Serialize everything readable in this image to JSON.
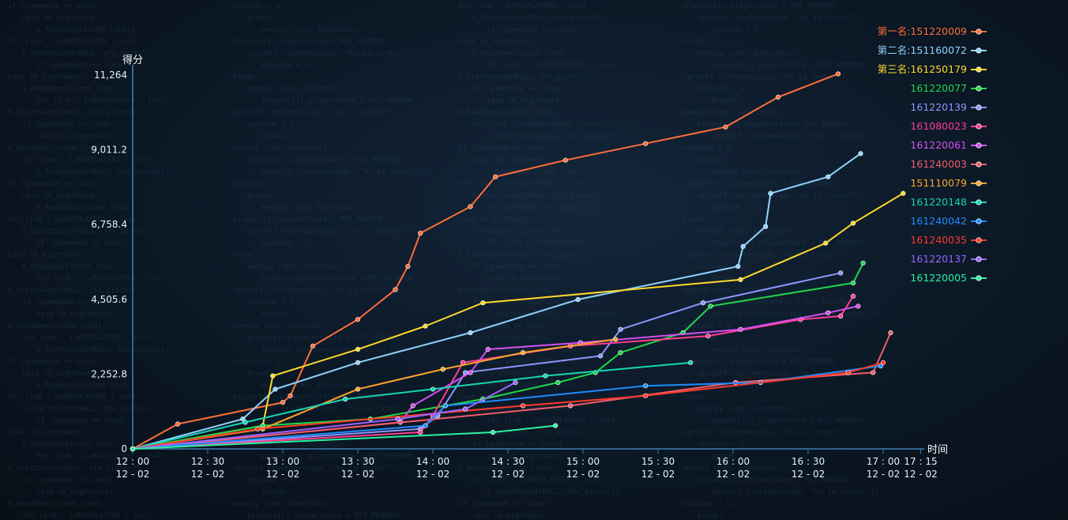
{
  "chart_data": {
    "type": "line",
    "ylabel": "得分",
    "xlabel": "时间",
    "ylim": [
      0,
      11264
    ],
    "yticks": [
      "0",
      "2,252.8",
      "4,505.6",
      "6,758.4",
      "9,011.2",
      "11,264"
    ],
    "yticks_values": [
      0,
      2252.8,
      4505.6,
      6758.4,
      9011.2,
      11264
    ],
    "xlim": [
      "12:00",
      "17:15"
    ],
    "xticks": [
      {
        "t": "12:00",
        "time": "12 : 00",
        "date": "12 - 02"
      },
      {
        "t": "12:30",
        "time": "12 : 30",
        "date": "12 - 02"
      },
      {
        "t": "13:00",
        "time": "13 : 00",
        "date": "12 - 02"
      },
      {
        "t": "13:30",
        "time": "13 : 30",
        "date": "12 - 02"
      },
      {
        "t": "14:00",
        "time": "14 : 00",
        "date": "12 - 02"
      },
      {
        "t": "14:30",
        "time": "14 : 30",
        "date": "12 - 02"
      },
      {
        "t": "15:00",
        "time": "15 : 00",
        "date": "12 - 02"
      },
      {
        "t": "15:30",
        "time": "15 : 30",
        "date": "12 - 02"
      },
      {
        "t": "16:00",
        "time": "16 : 00",
        "date": "12 - 02"
      },
      {
        "t": "16:30",
        "time": "16 : 30",
        "date": "12 - 02"
      },
      {
        "t": "17:00",
        "time": "17 : 00",
        "date": "12 - 02"
      },
      {
        "t": "17:15",
        "time": "17 : 15",
        "date": "12 - 02"
      }
    ],
    "grid": false,
    "legend_position": "top-right",
    "series": [
      {
        "name": "第一名:151220009",
        "color": "#ff6e3a",
        "points": [
          [
            "12:00",
            0
          ],
          [
            "12:18",
            750
          ],
          [
            "13:00",
            1400
          ],
          [
            "13:03",
            1600
          ],
          [
            "13:12",
            3100
          ],
          [
            "13:30",
            3900
          ],
          [
            "13:45",
            4800
          ],
          [
            "13:50",
            5500
          ],
          [
            "13:55",
            6500
          ],
          [
            "14:15",
            7300
          ],
          [
            "14:25",
            8200
          ],
          [
            "14:53",
            8700
          ],
          [
            "15:25",
            9200
          ],
          [
            "15:57",
            9700
          ],
          [
            "16:18",
            10600
          ],
          [
            "16:42",
            11300
          ]
        ]
      },
      {
        "name": "第二名:151160072",
        "color": "#8fd3ff",
        "points": [
          [
            "12:00",
            0
          ],
          [
            "12:44",
            900
          ],
          [
            "12:57",
            1800
          ],
          [
            "13:30",
            2600
          ],
          [
            "14:15",
            3500
          ],
          [
            "14:58",
            4500
          ],
          [
            "16:02",
            5500
          ],
          [
            "16:04",
            6100
          ],
          [
            "16:13",
            6700
          ],
          [
            "16:15",
            7700
          ],
          [
            "16:38",
            8200
          ],
          [
            "16:51",
            8900
          ]
        ]
      },
      {
        "name": "第三名:161250179",
        "color": "#ffd82a",
        "points": [
          [
            "12:00",
            0
          ],
          [
            "12:52",
            700
          ],
          [
            "12:56",
            2200
          ],
          [
            "13:30",
            3000
          ],
          [
            "13:57",
            3700
          ],
          [
            "14:20",
            4400
          ],
          [
            "16:03",
            5100
          ],
          [
            "16:37",
            6200
          ],
          [
            "16:48",
            6800
          ],
          [
            "17:08",
            7700
          ]
        ]
      },
      {
        "name": "161220077",
        "color": "#20d84a",
        "points": [
          [
            "12:00",
            0
          ],
          [
            "12:52",
            700
          ],
          [
            "13:35",
            900
          ],
          [
            "14:20",
            1500
          ],
          [
            "14:50",
            2000
          ],
          [
            "15:05",
            2300
          ],
          [
            "15:15",
            2900
          ],
          [
            "15:40",
            3500
          ],
          [
            "15:51",
            4300
          ],
          [
            "16:48",
            5000
          ],
          [
            "16:52",
            5600
          ]
        ]
      },
      {
        "name": "161220139",
        "color": "#8c96ff",
        "points": [
          [
            "12:00",
            0
          ],
          [
            "13:55",
            600
          ],
          [
            "14:02",
            1000
          ],
          [
            "14:13",
            2300
          ],
          [
            "15:07",
            2800
          ],
          [
            "15:15",
            3600
          ],
          [
            "15:48",
            4400
          ],
          [
            "16:43",
            5300
          ]
        ]
      },
      {
        "name": "161080023",
        "color": "#ff3d93",
        "points": [
          [
            "12:00",
            0
          ],
          [
            "13:55",
            500
          ],
          [
            "14:00",
            1000
          ],
          [
            "14:12",
            2600
          ],
          [
            "14:55",
            3100
          ],
          [
            "15:50",
            3400
          ],
          [
            "16:27",
            3900
          ],
          [
            "16:43",
            4000
          ],
          [
            "16:48",
            4600
          ]
        ]
      },
      {
        "name": "161220061",
        "color": "#d24ff0",
        "points": [
          [
            "12:00",
            0
          ],
          [
            "13:47",
            800
          ],
          [
            "13:52",
            1300
          ],
          [
            "14:15",
            2300
          ],
          [
            "14:22",
            3000
          ],
          [
            "14:59",
            3200
          ],
          [
            "16:03",
            3600
          ],
          [
            "16:38",
            4100
          ],
          [
            "16:50",
            4300
          ]
        ]
      },
      {
        "name": "161240003",
        "color": "#f05c6a",
        "points": [
          [
            "12:00",
            0
          ],
          [
            "14:55",
            1300
          ],
          [
            "16:01",
            2000
          ],
          [
            "16:56",
            2300
          ],
          [
            "17:03",
            3500
          ]
        ]
      },
      {
        "name": "151110079",
        "color": "#ffa32a",
        "points": [
          [
            "12:00",
            0
          ],
          [
            "12:52",
            600
          ],
          [
            "13:30",
            1800
          ],
          [
            "14:04",
            2400
          ],
          [
            "14:36",
            2900
          ],
          [
            "15:13",
            3300
          ]
        ]
      },
      {
        "name": "161220148",
        "color": "#16d6b4",
        "points": [
          [
            "12:00",
            0
          ],
          [
            "12:45",
            800
          ],
          [
            "13:25",
            1500
          ],
          [
            "14:00",
            1800
          ],
          [
            "14:45",
            2200
          ],
          [
            "15:43",
            2600
          ]
        ]
      },
      {
        "name": "161240042",
        "color": "#1e8cff",
        "points": [
          [
            "12:00",
            0
          ],
          [
            "13:57",
            700
          ],
          [
            "14:05",
            1300
          ],
          [
            "15:25",
            1900
          ],
          [
            "16:11",
            2000
          ],
          [
            "16:59",
            2500
          ]
        ]
      },
      {
        "name": "161240035",
        "color": "#ff3a2a",
        "points": [
          [
            "12:00",
            0
          ],
          [
            "12:50",
            600
          ],
          [
            "14:36",
            1300
          ],
          [
            "15:25",
            1600
          ],
          [
            "16:46",
            2300
          ],
          [
            "17:00",
            2600
          ]
        ]
      },
      {
        "name": "161220137",
        "color": "#9a64ff",
        "points": [
          [
            "12:00",
            0
          ],
          [
            "13:46",
            900
          ],
          [
            "14:13",
            1200
          ],
          [
            "14:33",
            2000
          ]
        ]
      },
      {
        "name": "161220005",
        "color": "#2af0a0",
        "points": [
          [
            "12:00",
            0
          ],
          [
            "14:24",
            500
          ],
          [
            "14:49",
            700
          ]
        ]
      }
    ]
  }
}
